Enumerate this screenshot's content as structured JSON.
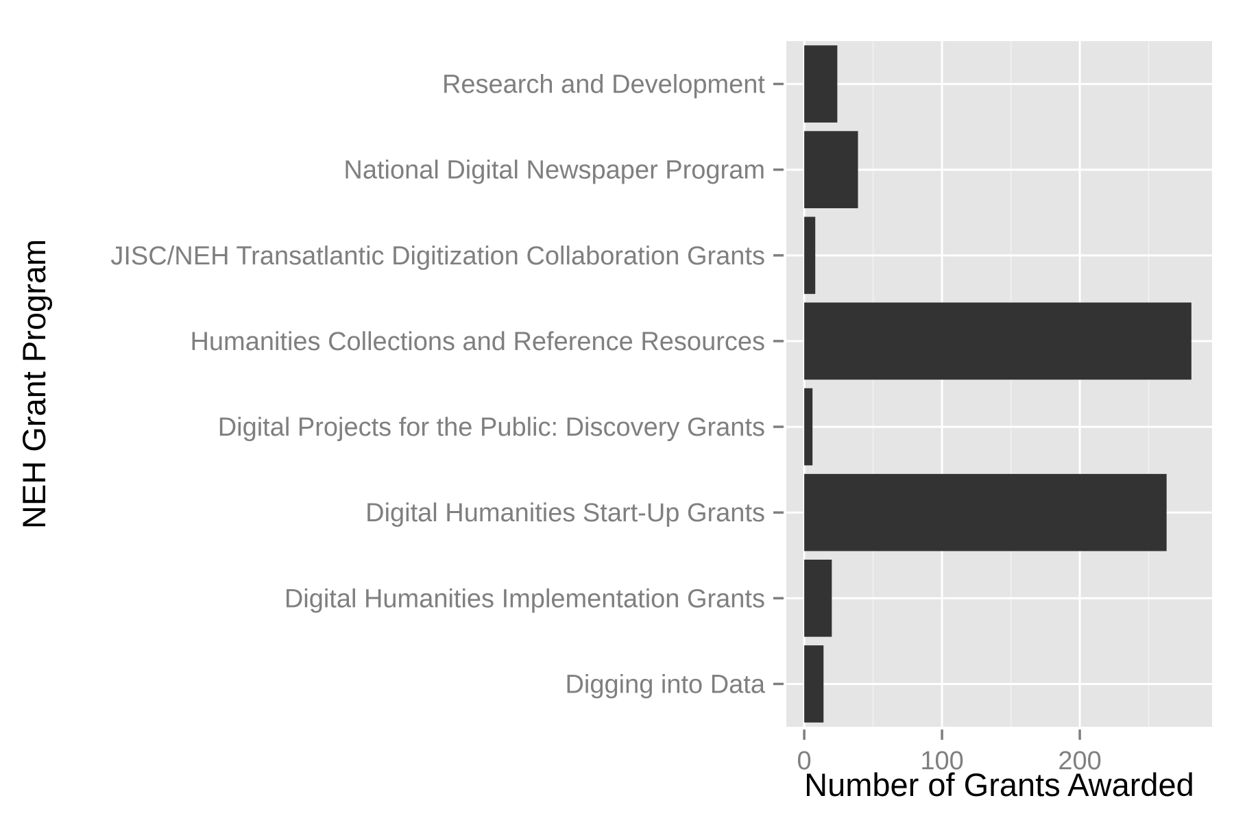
{
  "chart_data": {
    "type": "bar",
    "orientation": "horizontal",
    "categories": [
      "Research and Development",
      "National Digital Newspaper Program",
      "JISC/NEH Transatlantic Digitization Collaboration Grants",
      "Humanities Collections and Reference Resources",
      "Digital Projects for the Public: Discovery Grants",
      "Digital Humanities Start-Up Grants",
      "Digital Humanities Implementation Grants",
      "Digging into Data"
    ],
    "values": [
      24,
      39,
      8,
      281,
      6,
      263,
      20,
      14
    ],
    "xlabel": "Number of Grants Awarded",
    "ylabel": "NEH Grant Program",
    "xlim": [
      -13,
      296
    ],
    "xticks": [
      0,
      100,
      200
    ],
    "xtick_labels": [
      "0",
      "100",
      "200"
    ],
    "grid": true,
    "legend": "none"
  },
  "colors": {
    "panel_background": "#e5e5e5",
    "grid_major": "#ffffff",
    "grid_minor": "#f2f2f2",
    "bar_fill": "#333333",
    "tick_text": "#7f7f7f",
    "tick_mark": "#7f7f7f",
    "axis_title": "#000000"
  }
}
